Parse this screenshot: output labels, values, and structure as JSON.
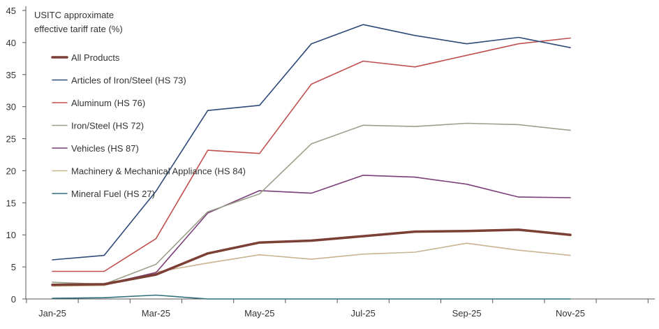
{
  "chart_data": {
    "type": "line",
    "title": "",
    "ylabel": [
      "USITC approximate",
      "effective tariff rate (%)"
    ],
    "xlabel": "",
    "ylim": [
      0,
      45
    ],
    "yticks": [
      0,
      5,
      10,
      15,
      20,
      25,
      30,
      35,
      40,
      45
    ],
    "x": [
      "Jan-25",
      "Feb-25",
      "Mar-25",
      "Apr-25",
      "May-25",
      "Jun-25",
      "Jul-25",
      "Aug-25",
      "Sep-25",
      "Oct-25",
      "Nov-25"
    ],
    "xtick_labels": [
      "Jan-25",
      "Mar-25",
      "May-25",
      "Jul-25",
      "Sep-25",
      "Nov-25"
    ],
    "grid": false,
    "legend_position": "top-left",
    "series": [
      {
        "name": "All Products",
        "color": "#7b3f35",
        "width": 3.5,
        "values": [
          2.2,
          2.3,
          3.8,
          7.1,
          8.8,
          9.1,
          9.8,
          10.5,
          10.6,
          10.8,
          10.0
        ]
      },
      {
        "name": "Articles of Iron/Steel (HS 73)",
        "color": "#2e4a78",
        "width": 1.6,
        "values": [
          6.1,
          6.8,
          16.8,
          29.4,
          30.2,
          39.8,
          42.8,
          41.1,
          39.8,
          40.8,
          39.2
        ]
      },
      {
        "name": "Aluminum (HS 76)",
        "color": "#c0504d",
        "width": 1.6,
        "values": [
          4.3,
          4.3,
          9.4,
          23.2,
          22.7,
          33.5,
          37.1,
          36.2,
          38.0,
          39.8,
          40.7
        ]
      },
      {
        "name": "Iron/Steel (HS 72)",
        "color": "#9aa08a",
        "width": 1.6,
        "values": [
          2.6,
          2.3,
          5.4,
          13.6,
          16.4,
          24.2,
          27.1,
          26.9,
          27.4,
          27.2,
          26.3
        ]
      },
      {
        "name": "Vehicles (HS 87)",
        "color": "#7a3e78",
        "width": 1.6,
        "values": [
          2.3,
          2.3,
          4.1,
          13.4,
          16.9,
          16.5,
          19.3,
          19.0,
          17.9,
          15.9,
          15.8
        ]
      },
      {
        "name": "Machinery & Mechanical Appliance (HS 84)",
        "color": "#c9b48f",
        "width": 1.6,
        "values": [
          2.0,
          2.1,
          4.2,
          5.6,
          6.9,
          6.2,
          7.0,
          7.3,
          8.7,
          7.6,
          6.8
        ]
      },
      {
        "name": "Mineral Fuel (HS 27)",
        "color": "#2f6f7a",
        "width": 1.6,
        "values": [
          0.1,
          0.2,
          0.6,
          0.0,
          0.0,
          0.0,
          0.0,
          0.0,
          0.0,
          0.0,
          0.0
        ]
      }
    ]
  }
}
